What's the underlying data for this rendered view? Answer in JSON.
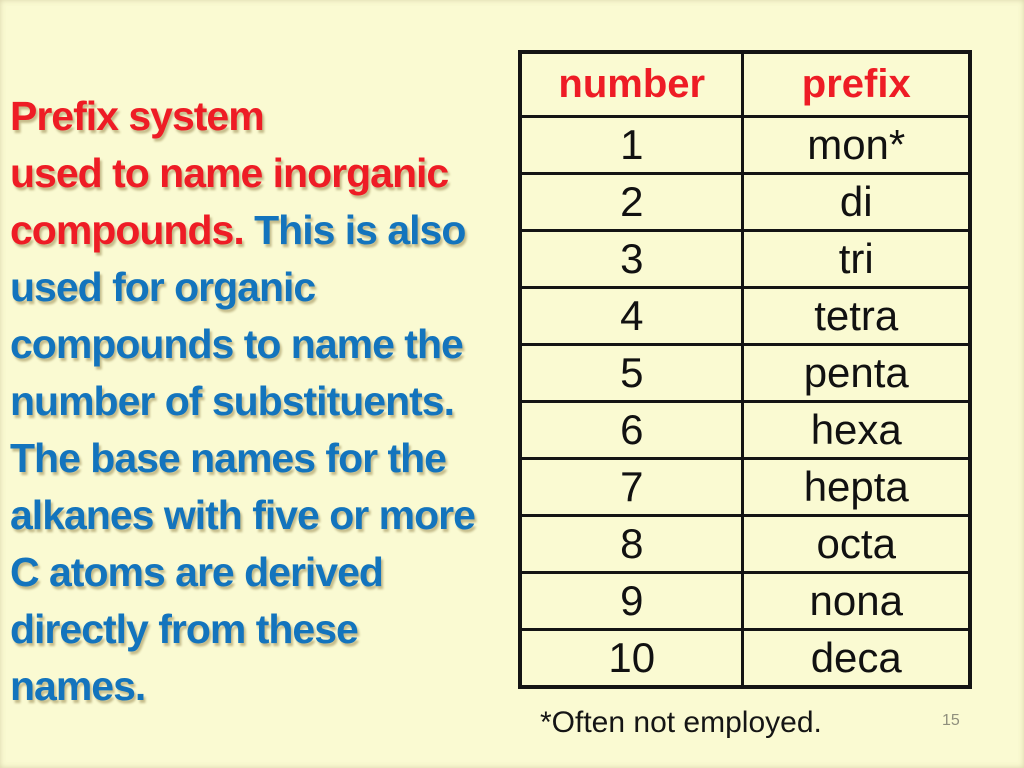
{
  "theme": {
    "bg": "#FAFAD2",
    "red": "#EE1C25",
    "blue": "#1374BD",
    "table-border": "#141414",
    "body-text": "#111111",
    "page-num-color": "#8F8F7D"
  },
  "text_block": {
    "lines": [
      {
        "segments": [
          {
            "text": "Prefix system",
            "color": "red"
          }
        ]
      },
      {
        "segments": [
          {
            "text": "used to name inorganic",
            "color": "red"
          }
        ]
      },
      {
        "segments": [
          {
            "text": "compounds. ",
            "color": "red"
          },
          {
            "text": "This is also",
            "color": "blue"
          }
        ]
      },
      {
        "segments": [
          {
            "text": "used for organic",
            "color": "blue"
          }
        ]
      },
      {
        "segments": [
          {
            "text": "compounds to name the",
            "color": "blue"
          }
        ]
      },
      {
        "segments": [
          {
            "text": "number of substituents.",
            "color": "blue"
          }
        ]
      },
      {
        "segments": [
          {
            "text": "The base names for the",
            "color": "blue"
          }
        ]
      },
      {
        "segments": [
          {
            "text": "alkanes with five or more",
            "color": "blue"
          }
        ]
      },
      {
        "segments": [
          {
            "text": "C atoms are derived",
            "color": "blue"
          }
        ]
      },
      {
        "segments": [
          {
            "text": "directly from these",
            "color": "blue"
          }
        ]
      },
      {
        "segments": [
          {
            "text": "names.",
            "color": "blue"
          }
        ]
      }
    ]
  },
  "table": {
    "headers": [
      "number",
      "prefix"
    ],
    "rows": [
      [
        "1",
        "mon*"
      ],
      [
        "2",
        "di"
      ],
      [
        "3",
        "tri"
      ],
      [
        "4",
        "tetra"
      ],
      [
        "5",
        "penta"
      ],
      [
        "6",
        "hexa"
      ],
      [
        "7",
        "hepta"
      ],
      [
        "8",
        "octa"
      ],
      [
        "9",
        "nona"
      ],
      [
        "10",
        "deca"
      ]
    ]
  },
  "footnote": "*Often not employed.",
  "page_number": "15"
}
